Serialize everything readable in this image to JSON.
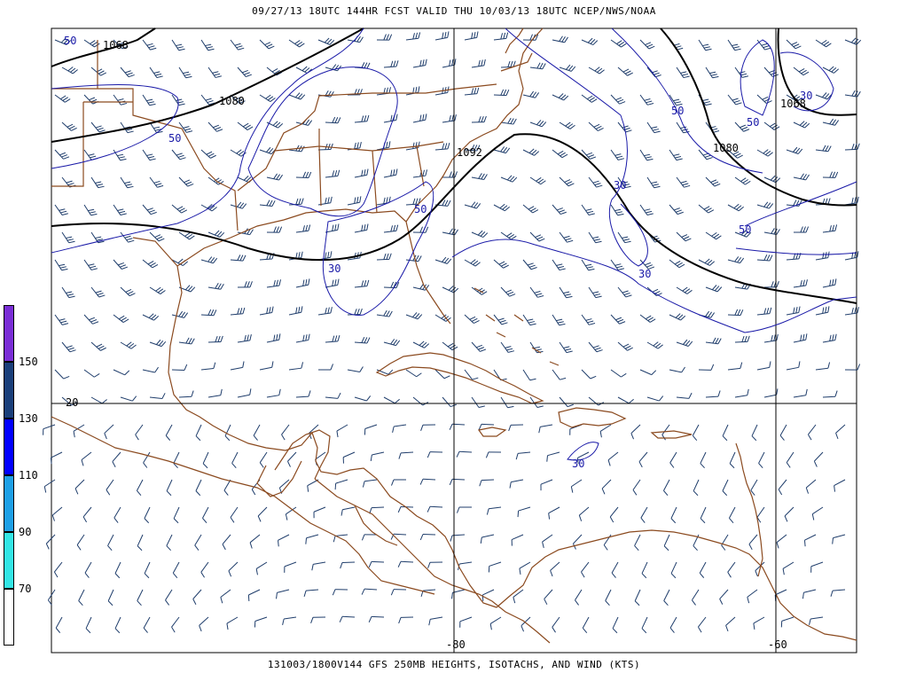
{
  "header": {
    "title": "09/27/13 18UTC  144HR  FCST VALID THU 10/03/13 18UTC  NCEP/NWS/NOAA"
  },
  "footer": {
    "caption": "131003/1800V144 GFS 250MB HEIGHTS, ISOTACHS, AND WIND (KTS)"
  },
  "colors": {
    "coastline": "#8b4a1f",
    "height_contour": "#000000",
    "isotach_contour": "#1a1aa8",
    "wind_barb": "#1f3d6b",
    "grid": "#000000"
  },
  "legend": {
    "items": [
      {
        "label": "150",
        "color": "#7a2ed6"
      },
      {
        "label": "130",
        "color": "#1a3f7a"
      },
      {
        "label": "110",
        "color": "#0000ff"
      },
      {
        "label": "90",
        "color": "#1ea0e6"
      },
      {
        "label": "70",
        "color": "#33e6e6"
      },
      {
        "label": "",
        "color": "#ffffff"
      }
    ]
  },
  "map": {
    "latitude_label": "20",
    "longitude_labels": [
      "-80",
      "-60"
    ],
    "height_labels": [
      "1068",
      "1080",
      "1092",
      "1080",
      "1068"
    ],
    "isotach_labels": [
      "50",
      "50",
      "50",
      "50",
      "50",
      "50",
      "30",
      "30",
      "30",
      "30",
      "30"
    ]
  }
}
